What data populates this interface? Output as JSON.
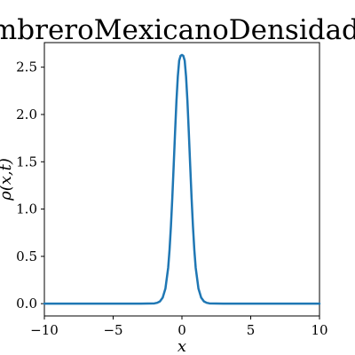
{
  "chart_data": {
    "type": "line",
    "title": "SombreroMexicanoDensidad.gif",
    "xlabel": "x",
    "ylabel": "ρ(x,t)",
    "xlim": [
      -10,
      10
    ],
    "ylim": [
      -0.13,
      2.76
    ],
    "x_ticks": [
      -10,
      -5,
      0,
      5,
      10
    ],
    "x_tick_labels": [
      "−10",
      "−5",
      "0",
      "5",
      "10"
    ],
    "y_ticks": [
      0.0,
      0.5,
      1.0,
      1.5,
      2.0,
      2.5
    ],
    "y_tick_labels": [
      "0.0",
      "0.5",
      "1.0",
      "1.5",
      "2.0",
      "2.5"
    ],
    "grid": false,
    "series": [
      {
        "color": "#1f77b4",
        "x": [
          -10,
          -3,
          -2.5,
          -2,
          -1.8,
          -1.6,
          -1.4,
          -1.2,
          -1.0,
          -0.9,
          -0.8,
          -0.7,
          -0.6,
          -0.5,
          -0.4,
          -0.3,
          -0.2,
          -0.1,
          0,
          0.1,
          0.2,
          0.3,
          0.4,
          0.5,
          0.6,
          0.7,
          0.8,
          0.9,
          1.0,
          1.2,
          1.4,
          1.6,
          1.8,
          2,
          2.5,
          3,
          10
        ],
        "y": [
          0.0,
          0.0,
          0.001,
          0.003,
          0.009,
          0.024,
          0.063,
          0.16,
          0.38,
          0.57,
          0.82,
          1.12,
          1.46,
          1.81,
          2.14,
          2.4,
          2.57,
          2.62,
          2.63,
          2.62,
          2.57,
          2.4,
          2.14,
          1.81,
          1.46,
          1.12,
          0.82,
          0.57,
          0.38,
          0.16,
          0.063,
          0.024,
          0.009,
          0.003,
          0.001,
          0.0,
          0.0
        ]
      }
    ]
  }
}
